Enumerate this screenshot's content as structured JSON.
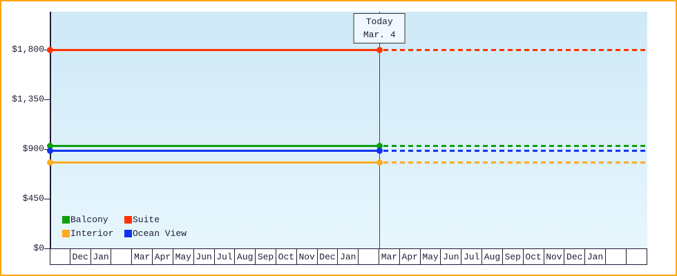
{
  "frame": {
    "border_color": "#ffa500",
    "background": "#ffffff"
  },
  "chart_data": {
    "type": "line",
    "y_axis": {
      "range": [
        0,
        2145
      ],
      "ticks": [
        {
          "label": "$1,800",
          "value": 1800
        },
        {
          "label": "$1,350",
          "value": 1350
        },
        {
          "label": "$900",
          "value": 900
        },
        {
          "label": "$450",
          "value": 450
        },
        {
          "label": "$0",
          "value": 0
        }
      ]
    },
    "x_axis": {
      "months": [
        "",
        "Dec",
        "Jan",
        "",
        "Mar",
        "Apr",
        "May",
        "Jun",
        "Jul",
        "Aug",
        "Sep",
        "Oct",
        "Nov",
        "Dec",
        "Jan",
        "",
        "Mar",
        "Apr",
        "May",
        "Jun",
        "Jul",
        "Aug",
        "Sep",
        "Oct",
        "Nov",
        "Dec",
        "Jan",
        "",
        ""
      ]
    },
    "today": {
      "title": "Today",
      "date": "Mar. 4",
      "month_index": 16
    },
    "series": [
      {
        "name": "Balcony",
        "color": "#0ca00c",
        "value": 930,
        "past_style": "solid",
        "future_style": "dashed"
      },
      {
        "name": "Suite",
        "color": "#ff3300",
        "value": 1800,
        "past_style": "solid",
        "future_style": "dashed"
      },
      {
        "name": "Interior",
        "color": "#ffaa22",
        "value": 780,
        "past_style": "solid",
        "future_style": "dashed"
      },
      {
        "name": "Ocean View",
        "color": "#1133ee",
        "value": 885,
        "past_style": "solid",
        "future_style": "dashed"
      }
    ],
    "legend": {
      "position": "bottom-left",
      "rows": [
        [
          "Balcony",
          "Suite"
        ],
        [
          "Interior",
          "Ocean View"
        ]
      ]
    },
    "plot_background": [
      "#cfe9f7",
      "#e7f6fd"
    ],
    "grid": false
  }
}
